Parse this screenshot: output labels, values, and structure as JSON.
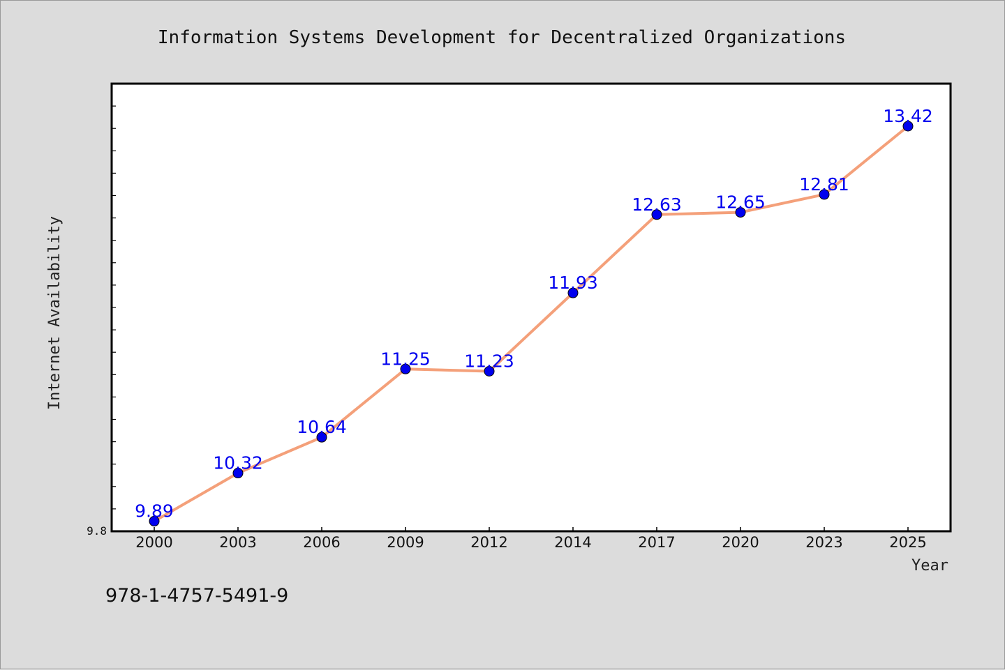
{
  "chart_data": {
    "type": "line",
    "title": "Information Systems Development for Decentralized Organizations",
    "xlabel": "Year",
    "ylabel": "Internet Availability",
    "categories": [
      "2000",
      "2003",
      "2006",
      "2009",
      "2012",
      "2014",
      "2017",
      "2020",
      "2023",
      "2025"
    ],
    "series": [
      {
        "values": [
          9.89,
          10.32,
          10.64,
          11.25,
          11.23,
          11.93,
          12.63,
          12.65,
          12.81,
          13.42
        ],
        "line_color": "#f4a07a",
        "marker_color": "#0000ee"
      }
    ],
    "ylim": [
      9.8,
      13.8
    ],
    "yticks_labeled": [
      "9.8"
    ],
    "grid": false,
    "legend": "none"
  },
  "footer": {
    "isbn": "978-1-4757-5491-9"
  },
  "colors": {
    "background": "#dcdcdc",
    "plot_background": "#ffffff",
    "data_label": "#0000ee"
  }
}
